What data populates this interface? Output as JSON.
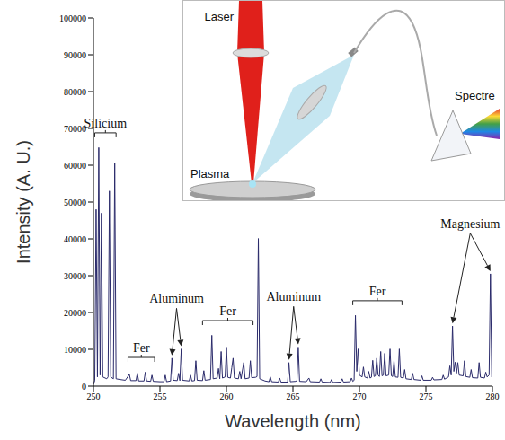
{
  "chart_data": {
    "type": "line",
    "x_label": "Wavelength (nm)",
    "y_label": "Intensity (A. U.)",
    "color": "#2b2b6b",
    "grid": false,
    "x": [
      250.0,
      250.1,
      250.2,
      250.3,
      250.4,
      250.5,
      250.6,
      250.7,
      251.0,
      251.1,
      251.2,
      251.3,
      251.5,
      251.6,
      251.7,
      252.0,
      252.4,
      252.7,
      252.8,
      253.2,
      253.3,
      253.4,
      253.8,
      253.9,
      254.0,
      254.3,
      254.4,
      254.5,
      255.0,
      255.3,
      255.4,
      255.5,
      255.8,
      255.9,
      256.0,
      256.3,
      256.4,
      256.5,
      256.6,
      256.7,
      257.2,
      257.3,
      257.4,
      257.6,
      257.7,
      257.8,
      258.2,
      258.3,
      258.4,
      258.8,
      258.9,
      259.0,
      259.3,
      259.4,
      259.5,
      259.6,
      259.7,
      259.9,
      260.0,
      260.1,
      260.3,
      260.4,
      260.5,
      260.6,
      260.9,
      261.0,
      261.1,
      261.3,
      261.4,
      261.7,
      261.8,
      261.9,
      262.2,
      262.3,
      262.4,
      262.5,
      262.9,
      263.2,
      263.3,
      263.4,
      263.9,
      264.0,
      264.1,
      264.6,
      264.7,
      264.8,
      265.2,
      265.3,
      265.4,
      265.5,
      266.0,
      266.2,
      266.3,
      267.0,
      267.1,
      267.2,
      267.8,
      267.9,
      268.0,
      268.6,
      268.7,
      268.8,
      269.3,
      269.4,
      269.5,
      269.6,
      269.7,
      269.8,
      269.9,
      270.0,
      270.2,
      270.3,
      270.4,
      270.6,
      270.7,
      270.8,
      270.9,
      271.0,
      271.1,
      271.2,
      271.3,
      271.4,
      271.5,
      271.6,
      271.7,
      271.8,
      271.9,
      272.0,
      272.2,
      272.3,
      272.4,
      272.5,
      272.6,
      272.7,
      272.9,
      273.0,
      273.1,
      273.3,
      273.4,
      273.5,
      273.9,
      274.0,
      274.1,
      274.6,
      274.7,
      274.8,
      275.4,
      275.5,
      275.6,
      276.2,
      276.3,
      276.4,
      276.7,
      276.8,
      276.9,
      277.0,
      277.1,
      277.2,
      277.3,
      277.4,
      277.5,
      277.8,
      277.9,
      278.0,
      278.3,
      278.4,
      278.5,
      278.9,
      279.0,
      279.1,
      279.4,
      279.5,
      279.6,
      279.75,
      279.85,
      279.95,
      280.0
    ],
    "values": [
      500,
      1500,
      48000,
      2500,
      64800,
      3000,
      47000,
      2500,
      2000,
      2500,
      53000,
      2500,
      2000,
      60600,
      2000,
      1800,
      1600,
      3200,
      1500,
      1500,
      3500,
      1400,
      1400,
      3800,
      1400,
      1300,
      3000,
      1300,
      1200,
      1200,
      3000,
      1200,
      1400,
      7600,
      1600,
      1500,
      3500,
      1500,
      10100,
      1600,
      1400,
      3000,
      1400,
      1500,
      6900,
      1600,
      1500,
      4200,
      1600,
      1800,
      13800,
      2000,
      2200,
      4800,
      2000,
      9400,
      2200,
      2500,
      10600,
      2400,
      2200,
      5000,
      7600,
      2200,
      2000,
      4000,
      2000,
      6400,
      2000,
      2200,
      6900,
      2300,
      2400,
      2600,
      40100,
      2000,
      1400,
      1200,
      2500,
      1200,
      1100,
      2200,
      1100,
      1100,
      6400,
      1200,
      1300,
      1500,
      10600,
      1300,
      1200,
      2200,
      1200,
      1100,
      2000,
      1100,
      1000,
      1800,
      1000,
      1100,
      2000,
      1100,
      1200,
      2200,
      1300,
      1600,
      19200,
      4000,
      10100,
      3000,
      2500,
      5200,
      2500,
      2200,
      4000,
      2200,
      2400,
      7000,
      2600,
      2800,
      7600,
      3000,
      2600,
      9400,
      2800,
      3000,
      8900,
      2800,
      3000,
      10100,
      2800,
      2600,
      6900,
      2500,
      2400,
      10100,
      2400,
      2200,
      4500,
      2000,
      1800,
      3500,
      1800,
      1600,
      2800,
      1600,
      1600,
      2400,
      1700,
      1800,
      3000,
      1900,
      2500,
      5500,
      3000,
      16300,
      4000,
      6500,
      3500,
      6400,
      3000,
      2800,
      6900,
      2600,
      2400,
      4500,
      2300,
      2200,
      6400,
      2400,
      2200,
      3800,
      2500,
      3000,
      30500,
      2500,
      2000
    ],
    "xlim": [
      250,
      280
    ],
    "xticks": [
      250,
      255,
      260,
      265,
      270,
      275,
      280
    ],
    "ylim": [
      0,
      100000
    ],
    "yticks": [
      0,
      10000,
      20000,
      30000,
      40000,
      50000,
      60000,
      70000,
      80000,
      90000,
      100000
    ],
    "brackets": [
      {
        "text": "Silicium",
        "x": [
          250.1,
          251.7
        ]
      },
      {
        "text": "Fer",
        "x": [
          252.6,
          254.6
        ]
      },
      {
        "text": "Fer",
        "x": [
          258.2,
          262.0
        ]
      },
      {
        "text": "Fer",
        "x": [
          269.5,
          273.2
        ]
      }
    ],
    "arrows": [
      {
        "text": "Aluminum",
        "x": [
          255.9,
          256.6
        ]
      },
      {
        "text": "Aluminum",
        "x": [
          264.7,
          265.4
        ]
      },
      {
        "text": "Magnesium",
        "x": [
          277.0,
          279.85
        ]
      }
    ],
    "inset": {
      "laser": "Laser",
      "plasma": "Plasma",
      "spectre": "Spectre"
    }
  }
}
